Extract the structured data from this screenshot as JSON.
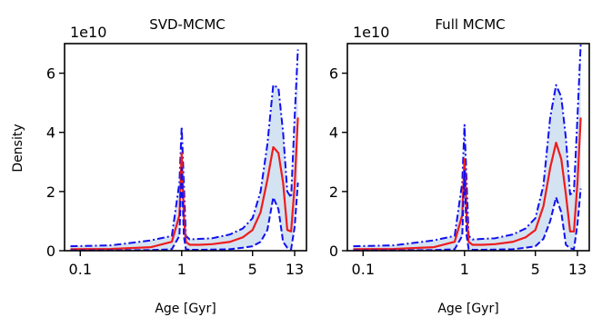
{
  "ylabel": "Density",
  "colors": {
    "median": "#ee1c1c",
    "bounds": "#1010ee",
    "band": "#d4e3f2"
  },
  "chart_data": [
    {
      "type": "line",
      "title": "SVD-MCMC",
      "xlabel": "Age [Gyr]",
      "ylabel": "Density",
      "offset_text": "1e10",
      "xscale": "log",
      "xlim": [
        0.07,
        17
      ],
      "ylim": [
        0,
        7
      ],
      "xticks": [
        0.1,
        1,
        5,
        13
      ],
      "xtick_labels": [
        "0.1",
        "1",
        "5",
        "13"
      ],
      "yticks": [
        0,
        2,
        4,
        6
      ],
      "ytick_labels": [
        "0",
        "2",
        "4",
        "6"
      ],
      "x": [
        0.08,
        0.2,
        0.5,
        0.8,
        0.95,
        1.0,
        1.05,
        1.1,
        1.2,
        1.5,
        2,
        3,
        4,
        5,
        6,
        7,
        8,
        9,
        10,
        11,
        12,
        13,
        14
      ],
      "series": [
        {
          "name": "upper",
          "style": "dashdot",
          "values": [
            0.15,
            0.18,
            0.35,
            0.5,
            2.3,
            4.2,
            2.3,
            0.5,
            0.38,
            0.4,
            0.42,
            0.55,
            0.75,
            1.1,
            2.0,
            3.6,
            5.6,
            5.5,
            4.0,
            2.0,
            1.8,
            4.5,
            6.8
          ]
        },
        {
          "name": "median",
          "style": "solid",
          "values": [
            0.05,
            0.06,
            0.12,
            0.3,
            1.2,
            3.3,
            1.2,
            0.3,
            0.2,
            0.2,
            0.22,
            0.3,
            0.45,
            0.7,
            1.3,
            2.4,
            3.5,
            3.3,
            2.3,
            0.7,
            0.65,
            2.2,
            4.5
          ]
        },
        {
          "name": "lower",
          "style": "dashed",
          "values": [
            0.01,
            0.01,
            0.02,
            0.05,
            0.5,
            2.8,
            0.5,
            0.05,
            0.03,
            0.03,
            0.04,
            0.05,
            0.1,
            0.15,
            0.3,
            0.7,
            1.8,
            1.4,
            0.3,
            0.1,
            0.05,
            0.8,
            2.3
          ]
        }
      ]
    },
    {
      "type": "line",
      "title": "Full MCMC",
      "xlabel": "Age [Gyr]",
      "ylabel": "",
      "offset_text": "1e10",
      "xscale": "log",
      "xlim": [
        0.07,
        17
      ],
      "ylim": [
        0,
        7
      ],
      "xticks": [
        0.1,
        1,
        5,
        13
      ],
      "xtick_labels": [
        "0.1",
        "1",
        "5",
        "13"
      ],
      "yticks": [
        0,
        2,
        4,
        6
      ],
      "ytick_labels": [
        "0",
        "2",
        "4",
        "6"
      ],
      "x": [
        0.08,
        0.2,
        0.5,
        0.8,
        0.95,
        1.0,
        1.05,
        1.1,
        1.2,
        1.5,
        2,
        3,
        4,
        5,
        6,
        7,
        8,
        9,
        10,
        11,
        12,
        13,
        14
      ],
      "series": [
        {
          "name": "upper",
          "style": "dashdot",
          "values": [
            0.15,
            0.18,
            0.35,
            0.5,
            2.3,
            4.25,
            2.3,
            0.5,
            0.38,
            0.4,
            0.42,
            0.55,
            0.75,
            1.1,
            2.2,
            4.5,
            5.6,
            5.2,
            3.8,
            1.9,
            2.0,
            4.5,
            7.0
          ]
        },
        {
          "name": "median",
          "style": "solid",
          "values": [
            0.05,
            0.06,
            0.12,
            0.3,
            1.2,
            3.1,
            1.2,
            0.3,
            0.2,
            0.2,
            0.22,
            0.3,
            0.45,
            0.7,
            1.5,
            2.8,
            3.65,
            3.1,
            1.9,
            0.65,
            0.65,
            2.3,
            4.5
          ]
        },
        {
          "name": "lower",
          "style": "dashed",
          "values": [
            0.01,
            0.01,
            0.02,
            0.05,
            0.5,
            2.7,
            0.5,
            0.05,
            0.03,
            0.03,
            0.04,
            0.05,
            0.1,
            0.15,
            0.4,
            1.0,
            1.8,
            1.3,
            0.2,
            0.08,
            0.05,
            0.9,
            2.1
          ]
        }
      ]
    }
  ]
}
